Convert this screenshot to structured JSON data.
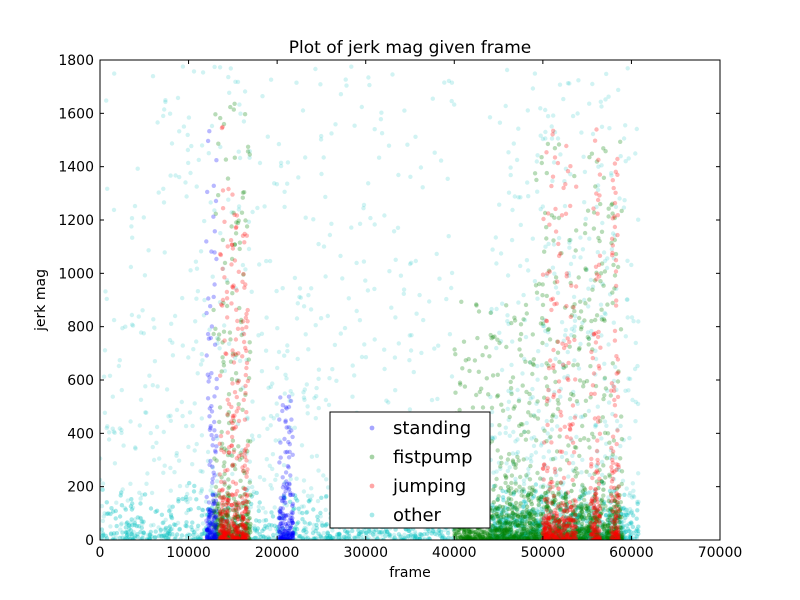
{
  "chart_data": {
    "type": "scatter",
    "title": "Plot of jerk mag given frame",
    "xlabel": "frame",
    "ylabel": "jerk mag",
    "xlim": [
      0,
      70000
    ],
    "ylim": [
      0,
      1800
    ],
    "xticks": [
      0,
      10000,
      20000,
      30000,
      40000,
      50000,
      60000,
      70000
    ],
    "yticks": [
      0,
      200,
      400,
      600,
      800,
      1000,
      1200,
      1400,
      1600,
      1800
    ],
    "grid": false,
    "legend_position": "lower-center",
    "series": [
      {
        "name": "standing",
        "color": "#0000ff",
        "clusters": [
          {
            "x_start": 12000,
            "x_end": 13200,
            "y_max": 1550
          },
          {
            "x_start": 20200,
            "x_end": 21800,
            "y_max": 560
          }
        ]
      },
      {
        "name": "fistpump",
        "color": "#008000",
        "clusters": [
          {
            "x_start": 12800,
            "x_end": 17000,
            "y_max": 1650
          },
          {
            "x_start": 40000,
            "x_end": 49000,
            "y_max": 900
          },
          {
            "x_start": 49000,
            "x_end": 59000,
            "y_max": 1500
          }
        ]
      },
      {
        "name": "jumping",
        "color": "#ff0000",
        "clusters": [
          {
            "x_start": 13500,
            "x_end": 14600,
            "y_max": 1600
          },
          {
            "x_start": 14800,
            "x_end": 15700,
            "y_max": 1300
          },
          {
            "x_start": 16000,
            "x_end": 16700,
            "y_max": 1150
          },
          {
            "x_start": 50000,
            "x_end": 53800,
            "y_max": 1560
          },
          {
            "x_start": 55400,
            "x_end": 56500,
            "y_max": 1560
          },
          {
            "x_start": 57700,
            "x_end": 58600,
            "y_max": 1500
          }
        ]
      },
      {
        "name": "other",
        "color": "#00bfbf",
        "clusters": [
          {
            "x_start": 0,
            "x_end": 40000,
            "y_max": 1780
          },
          {
            "x_start": 44000,
            "x_end": 60800,
            "y_max": 1770
          }
        ]
      }
    ]
  }
}
